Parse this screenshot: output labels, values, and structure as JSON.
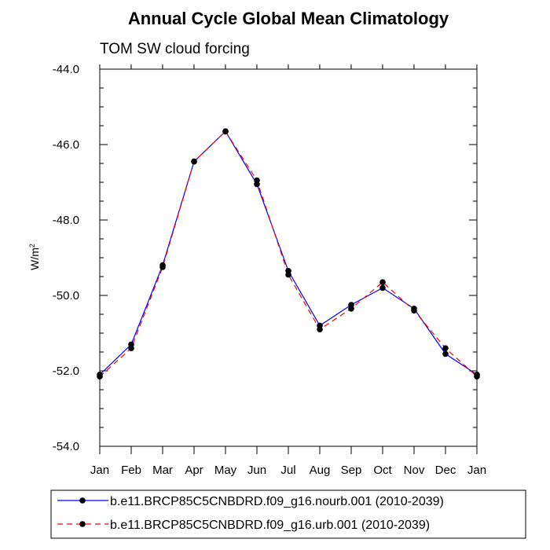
{
  "chart_data": {
    "type": "line",
    "title": "Annual Cycle Global Mean Climatology",
    "subtitle": "TOM SW cloud forcing",
    "ylabel_base": "W/m",
    "ylabel_sup": "2",
    "xlabel": "",
    "categories": [
      "Jan",
      "Feb",
      "Mar",
      "Apr",
      "May",
      "Jun",
      "Jul",
      "Aug",
      "Sep",
      "Oct",
      "Nov",
      "Dec",
      "Jan"
    ],
    "ylim": [
      -54.0,
      -44.0
    ],
    "yticks": [
      -44.0,
      -46.0,
      -48.0,
      -50.0,
      -52.0,
      -54.0
    ],
    "ytick_labels": [
      "-44.0",
      "-46.0",
      "-48.0",
      "-50.0",
      "-52.0",
      "-54.0"
    ],
    "grid": false,
    "legend_position": "bottom",
    "series": [
      {
        "name": "b.e11.BRCP85C5CNBDRD.f09_g16.nourb.001 (2010-2039)",
        "color": "#0000ff",
        "dash": "solid",
        "values": [
          -52.1,
          -51.3,
          -49.2,
          -46.45,
          -45.65,
          -47.05,
          -49.35,
          -50.8,
          -50.25,
          -49.8,
          -50.35,
          -51.55,
          -52.1
        ]
      },
      {
        "name": "b.e11.BRCP85C5CNBDRD.f09_g16.urb.001 (2010-2039)",
        "color": "#ff0000",
        "dash": "dashed",
        "values": [
          -52.15,
          -51.4,
          -49.25,
          -46.45,
          -45.65,
          -46.95,
          -49.45,
          -50.9,
          -50.35,
          -49.65,
          -50.4,
          -51.4,
          -52.15
        ]
      }
    ]
  }
}
